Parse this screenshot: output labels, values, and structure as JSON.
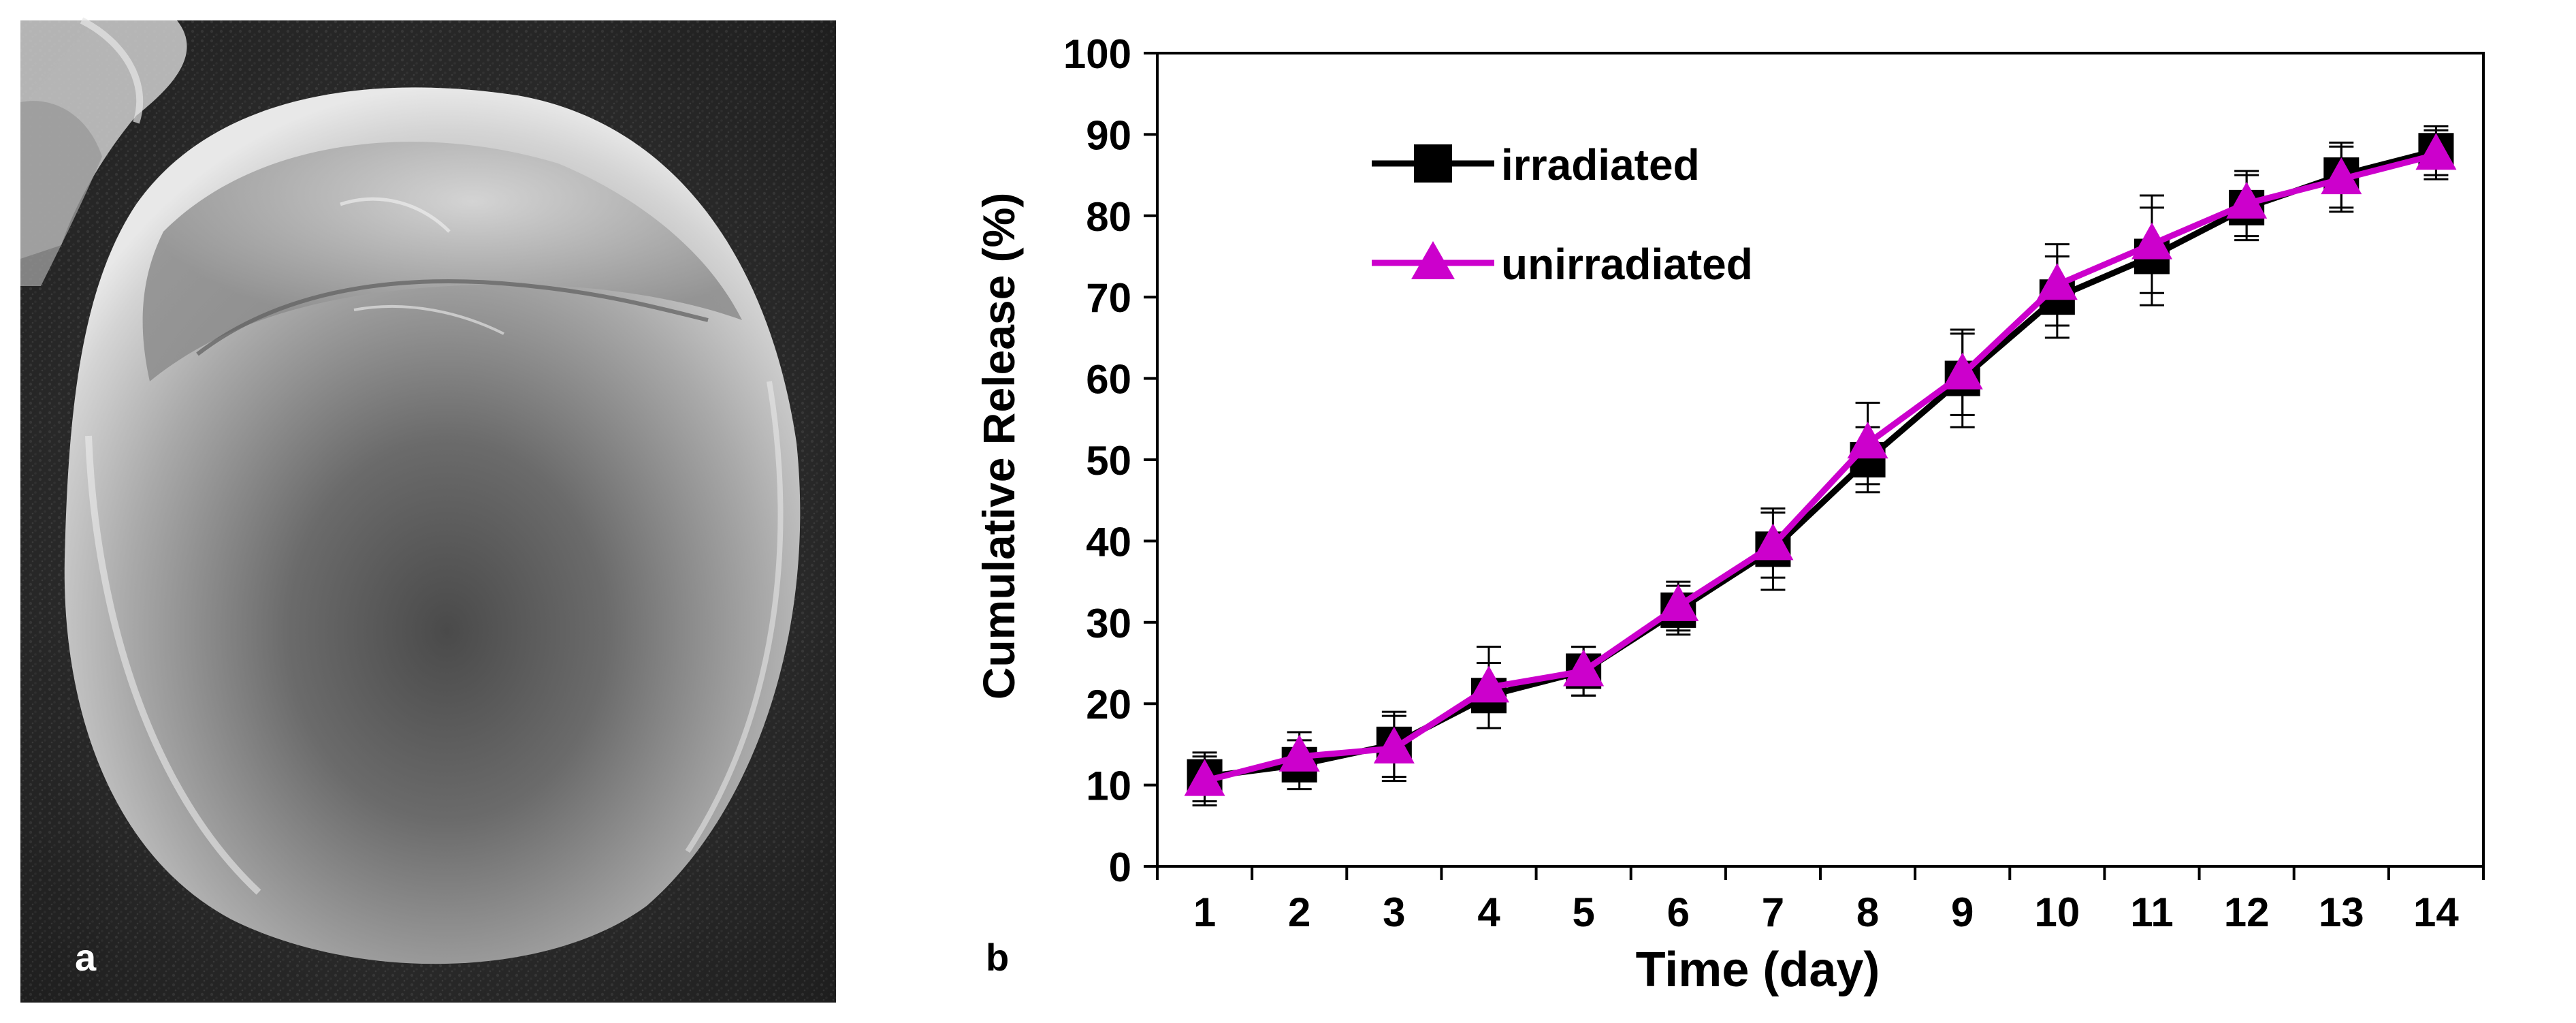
{
  "panels": {
    "a": {
      "label": "a",
      "kind": "SEM micrograph of a single spherical microparticle"
    },
    "b": {
      "label": "b"
    }
  },
  "chart_data": {
    "type": "line",
    "title": "",
    "xlabel": "Time (day)",
    "ylabel": "Cumulative Release (%)",
    "categories": [
      "1",
      "2",
      "3",
      "4",
      "5",
      "6",
      "7",
      "8",
      "9",
      "10",
      "11",
      "12",
      "13",
      "14"
    ],
    "x": [
      1,
      2,
      3,
      4,
      5,
      6,
      7,
      8,
      9,
      10,
      11,
      12,
      13,
      14
    ],
    "ylim": [
      0,
      100
    ],
    "yticks": [
      0,
      10,
      20,
      30,
      40,
      50,
      60,
      70,
      80,
      90,
      100
    ],
    "grid": false,
    "legend_position": "top-left",
    "series": [
      {
        "name": "irradiated",
        "color": "#000000",
        "marker": "square",
        "values": [
          11,
          12.5,
          15,
          21,
          24,
          31.5,
          39,
          50,
          60,
          70,
          75,
          81,
          85,
          88
        ],
        "error": [
          3,
          3,
          4,
          4,
          3,
          3,
          5,
          4,
          6,
          5,
          6,
          4,
          4,
          3
        ]
      },
      {
        "name": "unirradiated",
        "color": "#cc00cc",
        "marker": "triangle",
        "values": [
          10.5,
          13.5,
          14.5,
          22,
          24,
          32,
          39.5,
          52,
          60.5,
          71.5,
          76.5,
          81.5,
          84.5,
          87.5
        ],
        "error": [
          3,
          3,
          4,
          5,
          3,
          3,
          4,
          5,
          5,
          5,
          6,
          4,
          4,
          3
        ]
      }
    ]
  },
  "colors": {
    "axis": "#000000",
    "irradiated": "#000000",
    "unirradiated": "#cc00cc",
    "panel_label_light": "#ffffff",
    "panel_label_dark": "#000000"
  }
}
